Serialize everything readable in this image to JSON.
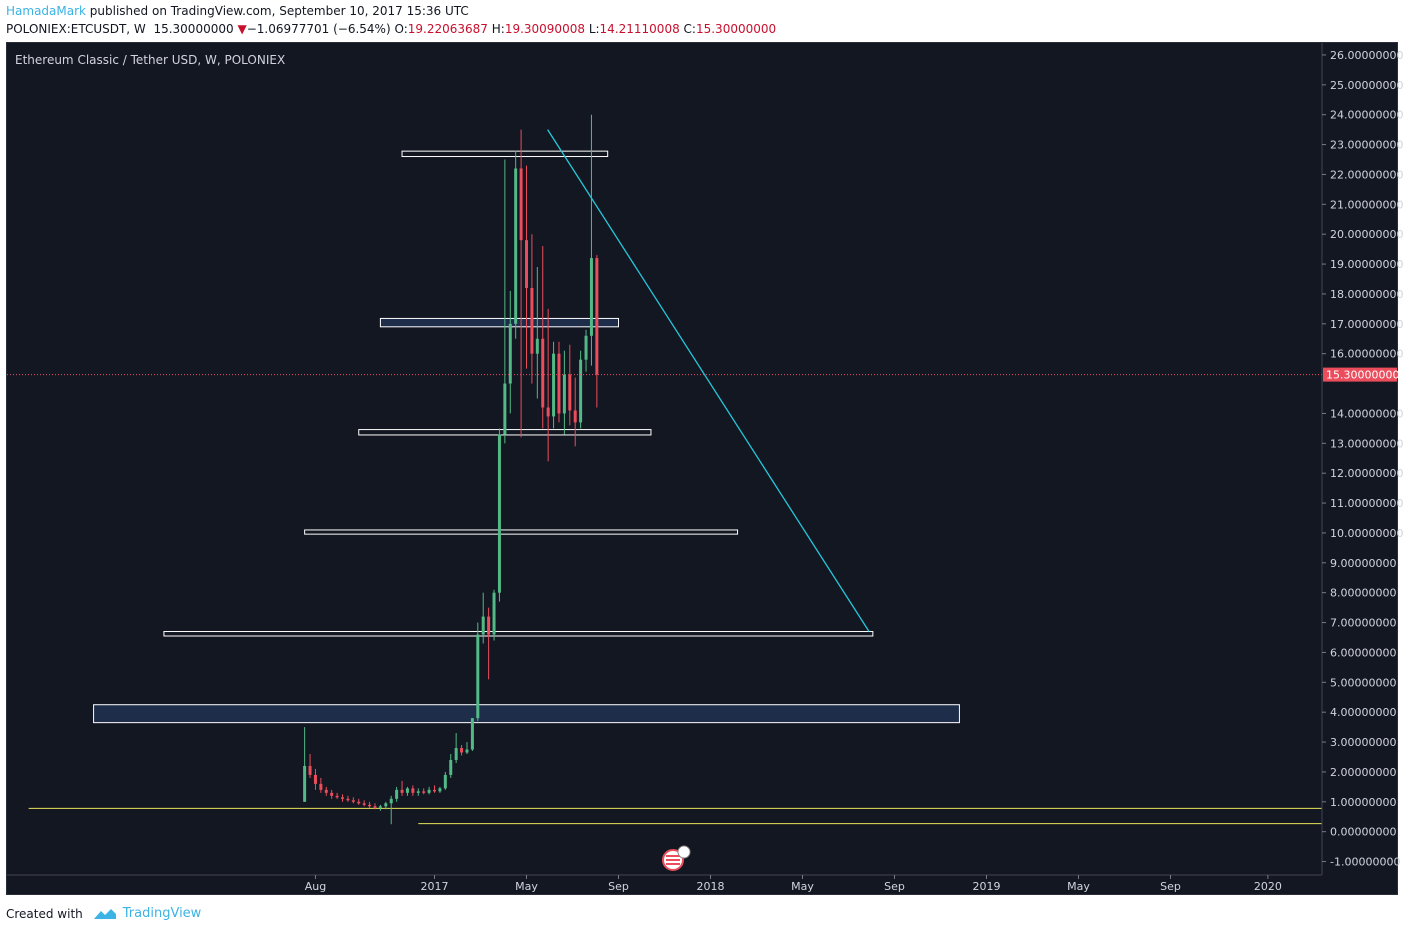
{
  "header": {
    "author": "HamadaMark",
    "published_text": " published on TradingView.com, September 10, 2017 15:36 UTC",
    "symbol": "POLONIEX:ETCUSDT, W",
    "last_price": "15.30000000",
    "change_arrow": "▼",
    "change": "−1.06977701 (−6.54%)",
    "open_label": "O:",
    "open": "19.22063687",
    "high_label": "H:",
    "high": "19.30090008",
    "low_label": "L:",
    "low": "14.21110008",
    "close_label": "C:",
    "close": "15.30000000"
  },
  "chart_title": "Ethereum Classic / Tether USD, W, POLONIEX",
  "footer": {
    "created_with": "Created with",
    "brand": "TradingView"
  },
  "colors": {
    "background": "#131722",
    "up": "#53b987",
    "down": "#eb4d5c",
    "zone_stroke": "#ffffff",
    "zone_fill": "#1e2d4a",
    "trendline": "#26c6da",
    "horizontal_line": "#e6e35a",
    "price_line": "#eb4d5c",
    "axis_text": "#d1d4dc"
  },
  "chart_data": {
    "type": "candlestick",
    "title": "Ethereum Classic / Tether USD, W, POLONIEX",
    "ylim": [
      -1.45,
      26.4
    ],
    "y_ticks": [
      "26.00000000",
      "25.00000000",
      "24.00000000",
      "23.00000000",
      "22.00000000",
      "21.00000000",
      "20.00000000",
      "19.00000000",
      "18.00000000",
      "17.00000000",
      "16.00000000",
      "15.00000000",
      "14.00000000",
      "13.00000000",
      "12.00000000",
      "11.00000000",
      "10.00000000",
      "9.00000000",
      "8.00000000",
      "7.00000000",
      "6.00000000",
      "5.00000000",
      "4.00000000",
      "3.00000000",
      "2.00000000",
      "1.00000000",
      "0.00000000",
      "-1.00000000"
    ],
    "y_tick_values": [
      26,
      25,
      24,
      23,
      22,
      21,
      20,
      19,
      18,
      17,
      16,
      15,
      14,
      13,
      12,
      11,
      10,
      9,
      8,
      7,
      6,
      5,
      4,
      3,
      2,
      1,
      0,
      -1
    ],
    "x_ticks": [
      {
        "label": "Aug",
        "week": 2
      },
      {
        "label": "2017",
        "week": 24
      },
      {
        "label": "May",
        "week": 41
      },
      {
        "label": "Sep",
        "week": 58
      },
      {
        "label": "2018",
        "week": 75
      },
      {
        "label": "May",
        "week": 92
      },
      {
        "label": "Sep",
        "week": 109
      },
      {
        "label": "2019",
        "week": 126
      },
      {
        "label": "May",
        "week": 143
      },
      {
        "label": "Sep",
        "week": 160
      },
      {
        "label": "2020",
        "week": 178
      }
    ],
    "x_range_weeks": [
      -55,
      188
    ],
    "current_price_label": "15.30000000",
    "current_price": 15.3,
    "candles": [
      {
        "o": 1.0,
        "h": 3.5,
        "l": 1.0,
        "c": 2.2
      },
      {
        "o": 2.2,
        "h": 2.6,
        "l": 1.8,
        "c": 1.9
      },
      {
        "o": 1.9,
        "h": 2.1,
        "l": 1.4,
        "c": 1.6
      },
      {
        "o": 1.6,
        "h": 1.8,
        "l": 1.3,
        "c": 1.4
      },
      {
        "o": 1.4,
        "h": 1.5,
        "l": 1.2,
        "c": 1.3
      },
      {
        "o": 1.3,
        "h": 1.4,
        "l": 1.1,
        "c": 1.2
      },
      {
        "o": 1.2,
        "h": 1.3,
        "l": 1.1,
        "c": 1.15
      },
      {
        "o": 1.15,
        "h": 1.25,
        "l": 1.0,
        "c": 1.1
      },
      {
        "o": 1.1,
        "h": 1.2,
        "l": 1.0,
        "c": 1.05
      },
      {
        "o": 1.05,
        "h": 1.15,
        "l": 0.95,
        "c": 1.0
      },
      {
        "o": 1.0,
        "h": 1.1,
        "l": 0.9,
        "c": 0.95
      },
      {
        "o": 0.95,
        "h": 1.05,
        "l": 0.85,
        "c": 0.9
      },
      {
        "o": 0.9,
        "h": 1.0,
        "l": 0.8,
        "c": 0.85
      },
      {
        "o": 0.85,
        "h": 0.95,
        "l": 0.75,
        "c": 0.8
      },
      {
        "o": 0.8,
        "h": 0.9,
        "l": 0.7,
        "c": 0.85
      },
      {
        "o": 0.85,
        "h": 1.0,
        "l": 0.75,
        "c": 0.95
      },
      {
        "o": 0.95,
        "h": 1.2,
        "l": 0.25,
        "c": 1.1
      },
      {
        "o": 1.1,
        "h": 1.5,
        "l": 1.0,
        "c": 1.4
      },
      {
        "o": 1.4,
        "h": 1.7,
        "l": 1.2,
        "c": 1.3
      },
      {
        "o": 1.3,
        "h": 1.5,
        "l": 1.2,
        "c": 1.45
      },
      {
        "o": 1.45,
        "h": 1.55,
        "l": 1.2,
        "c": 1.3
      },
      {
        "o": 1.3,
        "h": 1.45,
        "l": 1.2,
        "c": 1.35
      },
      {
        "o": 1.35,
        "h": 1.45,
        "l": 1.25,
        "c": 1.3
      },
      {
        "o": 1.3,
        "h": 1.5,
        "l": 1.25,
        "c": 1.4
      },
      {
        "o": 1.4,
        "h": 1.55,
        "l": 1.3,
        "c": 1.35
      },
      {
        "o": 1.35,
        "h": 1.5,
        "l": 1.3,
        "c": 1.45
      },
      {
        "o": 1.45,
        "h": 2.0,
        "l": 1.4,
        "c": 1.9
      },
      {
        "o": 1.9,
        "h": 2.6,
        "l": 1.8,
        "c": 2.4
      },
      {
        "o": 2.4,
        "h": 3.3,
        "l": 2.3,
        "c": 2.8
      },
      {
        "o": 2.8,
        "h": 2.9,
        "l": 2.55,
        "c": 2.65
      },
      {
        "o": 2.65,
        "h": 3.0,
        "l": 2.6,
        "c": 2.75
      },
      {
        "o": 2.75,
        "h": 3.8,
        "l": 2.7,
        "c": 3.8
      },
      {
        "o": 3.8,
        "h": 7.0,
        "l": 3.7,
        "c": 6.6
      },
      {
        "o": 6.6,
        "h": 8.0,
        "l": 6.3,
        "c": 7.2
      },
      {
        "o": 7.2,
        "h": 7.5,
        "l": 5.1,
        "c": 6.6
      },
      {
        "o": 6.6,
        "h": 8.1,
        "l": 6.4,
        "c": 8.0
      },
      {
        "o": 8.0,
        "h": 13.5,
        "l": 7.7,
        "c": 13.3
      },
      {
        "o": 13.3,
        "h": 22.5,
        "l": 13.0,
        "c": 15.0
      },
      {
        "o": 15.0,
        "h": 18.1,
        "l": 14.0,
        "c": 17.0
      },
      {
        "o": 17.0,
        "h": 22.8,
        "l": 16.5,
        "c": 22.2
      },
      {
        "o": 22.2,
        "h": 23.5,
        "l": 13.2,
        "c": 19.8
      },
      {
        "o": 19.8,
        "h": 22.3,
        "l": 15.5,
        "c": 18.2
      },
      {
        "o": 18.2,
        "h": 20.0,
        "l": 15.0,
        "c": 16.0
      },
      {
        "o": 16.0,
        "h": 18.9,
        "l": 14.5,
        "c": 16.5
      },
      {
        "o": 16.5,
        "h": 19.6,
        "l": 13.5,
        "c": 14.2
      },
      {
        "o": 14.2,
        "h": 17.5,
        "l": 12.4,
        "c": 13.9
      },
      {
        "o": 13.9,
        "h": 16.4,
        "l": 13.5,
        "c": 16.0
      },
      {
        "o": 16.0,
        "h": 16.4,
        "l": 13.7,
        "c": 14.0
      },
      {
        "o": 14.0,
        "h": 16.1,
        "l": 13.3,
        "c": 15.3
      },
      {
        "o": 15.3,
        "h": 16.3,
        "l": 13.6,
        "c": 14.1
      },
      {
        "o": 14.1,
        "h": 15.2,
        "l": 12.9,
        "c": 13.7
      },
      {
        "o": 13.7,
        "h": 16.1,
        "l": 13.5,
        "c": 15.8
      },
      {
        "o": 15.8,
        "h": 16.8,
        "l": 15.4,
        "c": 16.6
      },
      {
        "o": 16.6,
        "h": 24.0,
        "l": 15.6,
        "c": 19.2
      },
      {
        "o": 19.2,
        "h": 19.3,
        "l": 14.2,
        "c": 15.3
      }
    ],
    "zones": [
      {
        "w0": 18,
        "w1": 56,
        "ylo": 22.6,
        "yhi": 22.78,
        "filled": false
      },
      {
        "w0": 14,
        "w1": 58,
        "ylo": 16.9,
        "yhi": 17.18,
        "filled": true
      },
      {
        "w0": 10,
        "w1": 64,
        "ylo": 13.28,
        "yhi": 13.46,
        "filled": false
      },
      {
        "w0": 0,
        "w1": 80,
        "ylo": 9.96,
        "yhi": 10.1,
        "filled": false
      },
      {
        "w0": -26,
        "w1": 105,
        "ylo": 6.55,
        "yhi": 6.7,
        "filled": false
      },
      {
        "w0": -39,
        "w1": 121,
        "ylo": 3.65,
        "yhi": 4.25,
        "filled": true
      }
    ],
    "trendline": {
      "w0": 44.9,
      "y0": 23.5,
      "w1": 104.3,
      "y1": 6.7
    },
    "horizontal_lines": [
      {
        "w0": -51,
        "y": 0.78
      },
      {
        "w0": 21,
        "y": 0.27
      }
    ]
  }
}
